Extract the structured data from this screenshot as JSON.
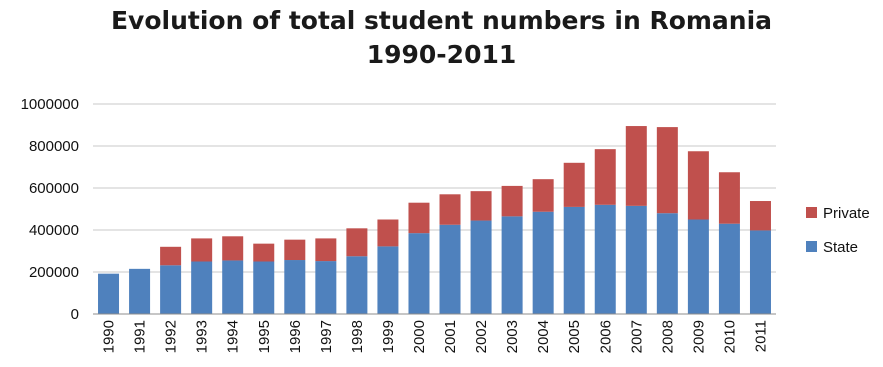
{
  "chart_data": {
    "type": "bar",
    "stacked": true,
    "title": "Evolution of total student numbers in Romania",
    "subtitle": "1990-2011",
    "xlabel": "",
    "ylabel": "",
    "ylim": [
      0,
      1000000
    ],
    "yticks": [
      "0",
      "200000",
      "400000",
      "600000",
      "800000",
      "1000000"
    ],
    "grid": true,
    "legend_position": "right",
    "categories": [
      "1990",
      "1991",
      "1992",
      "1993",
      "1994",
      "1995",
      "1996",
      "1997",
      "1998",
      "1999",
      "2000",
      "2001",
      "2002",
      "2003",
      "2004",
      "2005",
      "2006",
      "2007",
      "2008",
      "2009",
      "2010",
      "2011"
    ],
    "series": [
      {
        "name": "State",
        "color": "#4f81bd",
        "values": [
          192000,
          215000,
          232000,
          250000,
          255000,
          250000,
          257000,
          252000,
          275000,
          322000,
          385000,
          425000,
          445000,
          465000,
          487000,
          510000,
          520000,
          515000,
          480000,
          450000,
          430000,
          398000
        ]
      },
      {
        "name": "Private",
        "color": "#c0504d",
        "values": [
          0,
          0,
          88000,
          110000,
          115000,
          85000,
          97000,
          108000,
          133000,
          128000,
          145000,
          145000,
          140000,
          145000,
          155000,
          210000,
          265000,
          380000,
          410000,
          325000,
          245000,
          140000
        ]
      }
    ]
  }
}
